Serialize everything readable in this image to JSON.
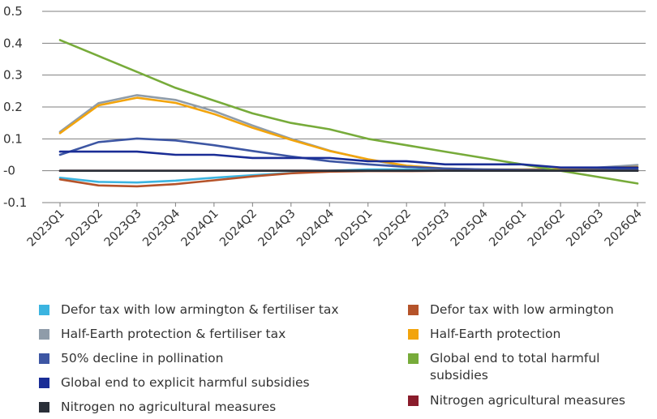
{
  "chart_data": {
    "type": "line",
    "x": [
      "2023Q1",
      "2023Q2",
      "2023Q3",
      "2023Q4",
      "2024Q1",
      "2024Q2",
      "2024Q3",
      "2024Q4",
      "2025Q1",
      "2025Q2",
      "2025Q3",
      "2025Q4",
      "2026Q1",
      "2026Q2",
      "2026Q3",
      "2026Q4"
    ],
    "ylim": [
      -0.1,
      0.5
    ],
    "yticks": [
      "-0.1",
      "-0",
      "0.1",
      "0.2",
      "0.3",
      "0.4",
      "0.5"
    ],
    "ytick_values": [
      -0.1,
      0,
      0.1,
      0.2,
      0.3,
      0.4,
      0.5
    ],
    "grid": "horizontal",
    "legend_position": "bottom",
    "series": [
      {
        "name": "Defor tax with low armington & fertiliser tax",
        "color": "#3bb4e0",
        "values": [
          -0.022,
          -0.035,
          -0.037,
          -0.031,
          -0.022,
          -0.014,
          -0.007,
          0.0,
          0.004,
          0.004,
          0.003,
          0.001,
          0.0,
          0.0,
          0.002,
          0.003
        ]
      },
      {
        "name": "Defor tax with low armington",
        "color": "#b5532a",
        "values": [
          -0.027,
          -0.046,
          -0.049,
          -0.042,
          -0.03,
          -0.018,
          -0.008,
          -0.003,
          -0.001,
          -0.001,
          0.0,
          0.0,
          0.0,
          0.0,
          0.0,
          0.0
        ]
      },
      {
        "name": "Half-Earth protection & fertiliser tax",
        "color": "#8f9ca9",
        "values": [
          0.122,
          0.212,
          0.237,
          0.222,
          0.187,
          0.142,
          0.1,
          0.063,
          0.035,
          0.014,
          0.004,
          0.002,
          0.003,
          0.004,
          0.01,
          0.018
        ]
      },
      {
        "name": "Half-Earth protection",
        "color": "#f2a40c",
        "values": [
          0.118,
          0.205,
          0.229,
          0.213,
          0.178,
          0.135,
          0.097,
          0.062,
          0.036,
          0.016,
          0.007,
          0.004,
          0.004,
          0.005,
          0.008,
          0.012
        ]
      },
      {
        "name": "50% decline in pollination",
        "color": "#3d56a3",
        "values": [
          0.05,
          0.09,
          0.101,
          0.095,
          0.08,
          0.062,
          0.045,
          0.03,
          0.02,
          0.012,
          0.007,
          0.004,
          0.003,
          0.002,
          0.003,
          0.004
        ]
      },
      {
        "name": "Global end to total harmful subsidies",
        "color": "#77ab3a",
        "values": [
          0.41,
          0.36,
          0.31,
          0.26,
          0.22,
          0.18,
          0.15,
          0.13,
          0.1,
          0.08,
          0.06,
          0.04,
          0.02,
          0.0,
          -0.02,
          -0.04
        ]
      },
      {
        "name": "Global end to explicit harmful subsidies",
        "color": "#1a2d96",
        "values": [
          0.06,
          0.06,
          0.06,
          0.05,
          0.05,
          0.04,
          0.04,
          0.04,
          0.03,
          0.03,
          0.02,
          0.02,
          0.02,
          0.01,
          0.01,
          0.01
        ]
      },
      {
        "name": "Nitrogen agricultural measures",
        "color": "#8a1c2b",
        "values": [
          0.0,
          0.0,
          0.0,
          0.0,
          0.0,
          0.0,
          0.0,
          0.0,
          0.0,
          0.0,
          0.0,
          0.0,
          0.0,
          0.0,
          0.0,
          0.0
        ]
      },
      {
        "name": "Nitrogen no agricultural measures",
        "color": "#2a2f38",
        "values": [
          0.0,
          0.0,
          0.0,
          0.0,
          0.0,
          0.0,
          0.0,
          0.0,
          0.0,
          0.0,
          0.0,
          0.0,
          0.0,
          0.0,
          0.0,
          0.0
        ]
      }
    ]
  },
  "legend": {
    "left": [
      {
        "label": "Defor tax with low armington & fertiliser tax",
        "color": "#3bb4e0"
      },
      {
        "label": "Half-Earth protection & fertiliser tax",
        "color": "#8f9ca9"
      },
      {
        "label": "50% decline in pollination",
        "color": "#3d56a3"
      },
      {
        "label": "Global end to explicit harmful subsidies",
        "color": "#1a2d96"
      },
      {
        "label": "Nitrogen no agricultural measures",
        "color": "#2a2f38"
      }
    ],
    "right": [
      {
        "label": "Defor tax with low armington",
        "color": "#b5532a"
      },
      {
        "label": "Half-Earth protection",
        "color": "#f2a40c"
      },
      {
        "label": "Global end to total harmful subsidies",
        "color": "#77ab3a"
      },
      {
        "label": "Nitrogen agricultural measures",
        "color": "#8a1c2b"
      }
    ]
  }
}
